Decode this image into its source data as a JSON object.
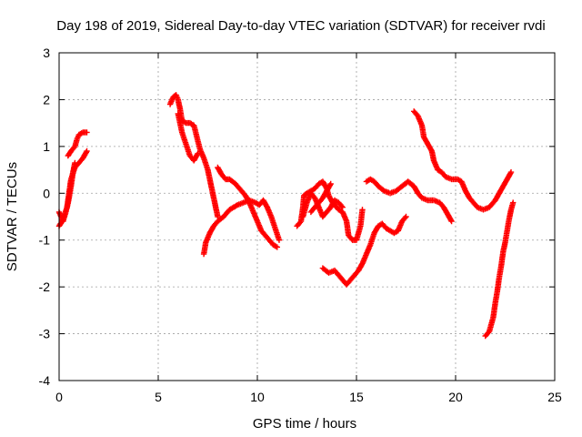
{
  "chart_data": {
    "type": "scatter",
    "title": "Day 198 of 2019, Sidereal Day-to-day VTEC variation (SDTVAR) for receiver rvdi",
    "xlabel": "GPS time / hours",
    "ylabel": "SDTVAR / TECUs",
    "xlim": [
      0,
      25
    ],
    "ylim": [
      -4,
      3
    ],
    "xticks": [
      "0",
      "5",
      "10",
      "15",
      "20",
      "25"
    ],
    "yticks": [
      "-4",
      "-3",
      "-2",
      "-1",
      "0",
      "1",
      "2",
      "3"
    ],
    "grid": true,
    "marker": "plus",
    "color": "#ff0000",
    "series": [
      {
        "segments": [
          [
            [
              0.0,
              -0.4
            ],
            [
              0.2,
              -0.6
            ],
            [
              0.4,
              -0.3
            ],
            [
              0.5,
              0.0
            ],
            [
              0.6,
              0.3
            ],
            [
              0.8,
              0.55
            ],
            [
              1.0,
              0.65
            ],
            [
              1.2,
              0.75
            ],
            [
              1.4,
              0.9
            ]
          ],
          [
            [
              0.0,
              -0.7
            ],
            [
              0.15,
              -0.6
            ],
            [
              0.3,
              -0.45
            ],
            [
              0.4,
              -0.3
            ],
            [
              0.5,
              -0.1
            ],
            [
              0.6,
              0.15
            ],
            [
              0.7,
              0.45
            ],
            [
              0.8,
              0.65
            ]
          ],
          [
            [
              0.45,
              0.8
            ],
            [
              0.6,
              0.9
            ],
            [
              0.8,
              1.0
            ],
            [
              0.9,
              1.15
            ],
            [
              1.0,
              1.25
            ],
            [
              1.2,
              1.3
            ],
            [
              1.4,
              1.3
            ]
          ],
          [
            [
              5.6,
              1.9
            ],
            [
              5.75,
              2.05
            ],
            [
              5.9,
              2.1
            ],
            [
              6.0,
              2.0
            ],
            [
              6.1,
              1.8
            ],
            [
              6.2,
              1.55
            ],
            [
              6.4,
              1.5
            ],
            [
              6.6,
              1.5
            ],
            [
              6.8,
              1.45
            ],
            [
              6.95,
              1.2
            ],
            [
              7.1,
              0.95
            ],
            [
              7.3,
              0.75
            ],
            [
              7.5,
              0.5
            ],
            [
              7.6,
              0.3
            ],
            [
              7.7,
              0.1
            ],
            [
              7.8,
              -0.1
            ],
            [
              7.9,
              -0.3
            ],
            [
              8.0,
              -0.5
            ]
          ],
          [
            [
              6.0,
              1.7
            ],
            [
              6.2,
              1.3
            ],
            [
              6.4,
              1.05
            ],
            [
              6.6,
              0.8
            ],
            [
              6.8,
              0.7
            ],
            [
              7.0,
              0.85
            ]
          ],
          [
            [
              7.3,
              -1.3
            ],
            [
              7.4,
              -1.05
            ],
            [
              7.6,
              -0.85
            ],
            [
              7.8,
              -0.7
            ],
            [
              8.0,
              -0.6
            ],
            [
              8.3,
              -0.5
            ],
            [
              8.6,
              -0.35
            ],
            [
              9.0,
              -0.25
            ],
            [
              9.3,
              -0.2
            ],
            [
              9.6,
              -0.15
            ],
            [
              9.9,
              -0.2
            ],
            [
              10.1,
              -0.25
            ],
            [
              10.3,
              -0.15
            ],
            [
              10.5,
              -0.3
            ],
            [
              10.7,
              -0.5
            ],
            [
              10.9,
              -0.75
            ],
            [
              11.1,
              -1.0
            ]
          ],
          [
            [
              8.0,
              0.55
            ],
            [
              8.2,
              0.4
            ],
            [
              8.4,
              0.3
            ],
            [
              8.6,
              0.3
            ],
            [
              8.9,
              0.2
            ],
            [
              9.2,
              0.05
            ],
            [
              9.4,
              -0.05
            ],
            [
              9.6,
              -0.2
            ],
            [
              9.8,
              -0.4
            ],
            [
              10.0,
              -0.6
            ],
            [
              10.2,
              -0.8
            ],
            [
              10.4,
              -0.9
            ],
            [
              10.6,
              -1.0
            ],
            [
              10.8,
              -1.1
            ],
            [
              11.0,
              -1.15
            ]
          ],
          [
            [
              12.0,
              -0.7
            ],
            [
              12.2,
              -0.6
            ],
            [
              12.3,
              -0.3
            ],
            [
              12.35,
              -0.05
            ],
            [
              12.5,
              0.0
            ],
            [
              12.7,
              0.05
            ],
            [
              12.9,
              0.1
            ],
            [
              13.1,
              0.2
            ],
            [
              13.3,
              0.25
            ],
            [
              13.5,
              0.1
            ],
            [
              13.6,
              -0.05
            ],
            [
              13.8,
              -0.2
            ],
            [
              13.9,
              -0.25
            ],
            [
              14.1,
              -0.35
            ],
            [
              14.3,
              -0.4
            ],
            [
              14.5,
              -0.6
            ],
            [
              14.6,
              -0.9
            ],
            [
              14.8,
              -1.0
            ],
            [
              15.0,
              -1.0
            ],
            [
              15.2,
              -0.7
            ],
            [
              15.3,
              -0.35
            ]
          ],
          [
            [
              12.3,
              -0.5
            ],
            [
              12.5,
              -0.2
            ],
            [
              12.7,
              0.0
            ],
            [
              12.9,
              -0.1
            ],
            [
              13.1,
              -0.3
            ],
            [
              13.3,
              -0.5
            ],
            [
              13.5,
              -0.4
            ],
            [
              13.7,
              -0.3
            ],
            [
              13.9,
              -0.15
            ],
            [
              14.1,
              -0.2
            ],
            [
              14.3,
              -0.3
            ]
          ],
          [
            [
              12.7,
              -0.4
            ],
            [
              12.9,
              -0.3
            ],
            [
              13.1,
              -0.2
            ],
            [
              13.3,
              -0.1
            ],
            [
              13.5,
              0.05
            ],
            [
              13.7,
              0.2
            ]
          ],
          [
            [
              13.3,
              -1.6
            ],
            [
              13.6,
              -1.7
            ],
            [
              13.9,
              -1.65
            ],
            [
              14.1,
              -1.75
            ],
            [
              14.3,
              -1.85
            ],
            [
              14.5,
              -1.95
            ],
            [
              14.7,
              -1.85
            ],
            [
              14.9,
              -1.75
            ],
            [
              15.1,
              -1.65
            ],
            [
              15.3,
              -1.5
            ],
            [
              15.5,
              -1.3
            ],
            [
              15.7,
              -1.1
            ],
            [
              15.9,
              -0.85
            ],
            [
              16.1,
              -0.7
            ],
            [
              16.3,
              -0.65
            ],
            [
              16.5,
              -0.75
            ],
            [
              16.7,
              -0.8
            ],
            [
              16.9,
              -0.85
            ],
            [
              17.1,
              -0.8
            ],
            [
              17.3,
              -0.6
            ],
            [
              17.5,
              -0.5
            ]
          ],
          [
            [
              15.5,
              0.25
            ],
            [
              15.7,
              0.3
            ],
            [
              15.9,
              0.25
            ],
            [
              16.1,
              0.15
            ],
            [
              16.4,
              0.05
            ],
            [
              16.7,
              0.0
            ],
            [
              17.0,
              0.05
            ],
            [
              17.3,
              0.15
            ],
            [
              17.6,
              0.25
            ],
            [
              17.9,
              0.15
            ],
            [
              18.1,
              0.0
            ],
            [
              18.3,
              -0.1
            ],
            [
              18.6,
              -0.15
            ],
            [
              18.9,
              -0.15
            ],
            [
              19.2,
              -0.2
            ],
            [
              19.4,
              -0.3
            ],
            [
              19.6,
              -0.45
            ],
            [
              19.8,
              -0.6
            ]
          ],
          [
            [
              17.9,
              1.75
            ],
            [
              18.1,
              1.65
            ],
            [
              18.3,
              1.45
            ],
            [
              18.4,
              1.2
            ],
            [
              18.6,
              1.05
            ],
            [
              18.8,
              0.9
            ],
            [
              18.9,
              0.7
            ],
            [
              19.1,
              0.5
            ],
            [
              19.3,
              0.45
            ],
            [
              19.5,
              0.35
            ],
            [
              19.8,
              0.3
            ],
            [
              20.1,
              0.3
            ],
            [
              20.3,
              0.25
            ],
            [
              20.5,
              0.05
            ],
            [
              20.7,
              -0.1
            ],
            [
              20.9,
              -0.2
            ],
            [
              21.1,
              -0.3
            ],
            [
              21.4,
              -0.35
            ],
            [
              21.7,
              -0.3
            ],
            [
              22.0,
              -0.15
            ],
            [
              22.2,
              0.0
            ],
            [
              22.4,
              0.15
            ],
            [
              22.6,
              0.3
            ],
            [
              22.8,
              0.45
            ]
          ],
          [
            [
              21.5,
              -3.05
            ],
            [
              21.7,
              -2.95
            ],
            [
              21.9,
              -2.65
            ],
            [
              22.0,
              -2.35
            ],
            [
              22.1,
              -2.1
            ],
            [
              22.2,
              -1.8
            ],
            [
              22.3,
              -1.55
            ],
            [
              22.4,
              -1.25
            ],
            [
              22.5,
              -1.05
            ],
            [
              22.6,
              -0.8
            ],
            [
              22.7,
              -0.55
            ],
            [
              22.8,
              -0.35
            ],
            [
              22.9,
              -0.2
            ]
          ]
        ]
      }
    ]
  }
}
